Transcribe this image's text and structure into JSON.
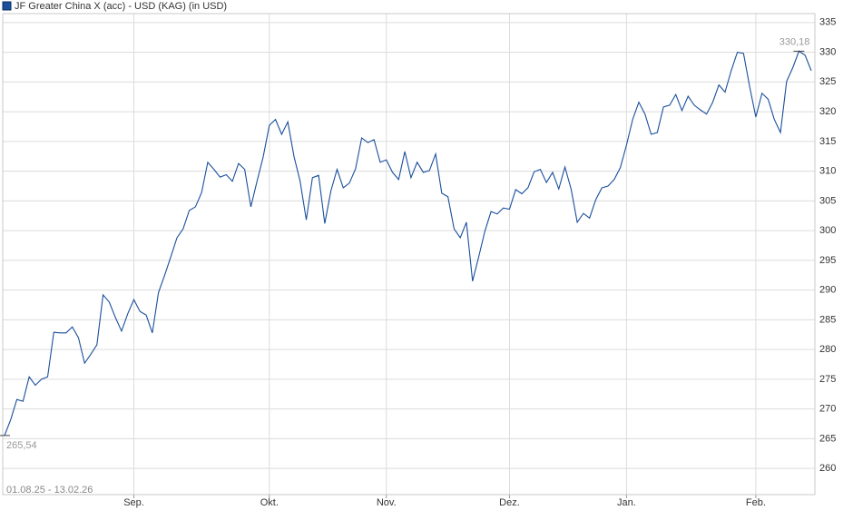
{
  "chart_data": {
    "type": "line",
    "date_range": "01.08.25 - 13.02.26",
    "categories": [
      null,
      null,
      null,
      null,
      null,
      null,
      null,
      null,
      null,
      null,
      null,
      null,
      null,
      null,
      null,
      null,
      null,
      null,
      null,
      null,
      null,
      "Sep.",
      null,
      null,
      null,
      null,
      null,
      null,
      null,
      null,
      null,
      null,
      null,
      null,
      null,
      null,
      null,
      null,
      null,
      null,
      null,
      null,
      null,
      "Okt.",
      null,
      null,
      null,
      null,
      null,
      null,
      null,
      null,
      null,
      null,
      null,
      null,
      null,
      null,
      null,
      null,
      null,
      null,
      "Nov.",
      null,
      null,
      null,
      null,
      null,
      null,
      null,
      null,
      null,
      null,
      null,
      null,
      null,
      null,
      null,
      null,
      null,
      null,
      null,
      "Dez.",
      null,
      null,
      null,
      null,
      null,
      null,
      null,
      null,
      null,
      null,
      null,
      null,
      null,
      null,
      null,
      null,
      null,
      null,
      "Jan.",
      null,
      null,
      null,
      null,
      null,
      null,
      null,
      null,
      null,
      null,
      null,
      null,
      null,
      null,
      null,
      null,
      null,
      null,
      null,
      null,
      "Feb.",
      null,
      null,
      null,
      null,
      null,
      null,
      null,
      null,
      null
    ],
    "series": [
      {
        "name": "JF Greater China X (acc) - USD (KAG) (in USD)",
        "color": "#1a4f9c",
        "values": [
          265.54,
          268.2,
          271.6,
          271.3,
          275.4,
          274.0,
          275.0,
          275.4,
          282.9,
          282.8,
          282.8,
          283.8,
          282.0,
          277.7,
          279.2,
          280.8,
          289.2,
          288.0,
          285.4,
          283.1,
          286.0,
          288.4,
          286.4,
          285.8,
          282.8,
          289.6,
          292.5,
          295.6,
          298.8,
          300.3,
          303.4,
          304.0,
          306.4,
          311.5,
          310.3,
          309.0,
          309.4,
          308.3,
          311.3,
          310.3,
          304.0,
          308.3,
          312.4,
          317.7,
          318.7,
          316.2,
          318.3,
          312.5,
          308.3,
          301.8,
          308.9,
          309.3,
          301.2,
          306.7,
          310.3,
          307.2,
          308.0,
          310.4,
          315.6,
          314.8,
          315.3,
          311.5,
          311.9,
          309.8,
          308.6,
          313.3,
          308.9,
          311.5,
          309.8,
          310.1,
          312.9,
          306.3,
          305.7,
          300.3,
          298.8,
          301.4,
          291.5,
          295.6,
          299.9,
          303.2,
          302.8,
          303.8,
          303.6,
          306.9,
          306.2,
          307.2,
          309.9,
          310.3,
          308.1,
          309.8,
          307.0,
          310.7,
          307.0,
          301.4,
          302.9,
          302.1,
          305.2,
          307.2,
          307.5,
          308.6,
          310.6,
          314.4,
          318.7,
          321.6,
          319.6,
          316.2,
          316.5,
          320.8,
          321.1,
          322.9,
          320.2,
          322.6,
          321.1,
          320.3,
          319.6,
          321.6,
          324.5,
          323.3,
          326.9,
          330.0,
          329.8,
          324.2,
          319.1,
          323.1,
          322.1,
          318.7,
          316.5,
          325.1,
          327.4,
          330.18,
          329.5,
          326.9
        ]
      }
    ],
    "annotations": [
      {
        "value": 265.54,
        "label": "265,54"
      },
      {
        "value": 330.18,
        "label": "330,18"
      }
    ],
    "ylim": [
      255.6,
      336.5
    ],
    "yticks": [
      260,
      265,
      270,
      275,
      280,
      285,
      290,
      295,
      300,
      305,
      310,
      315,
      320,
      325,
      330,
      335
    ],
    "grid": true
  }
}
